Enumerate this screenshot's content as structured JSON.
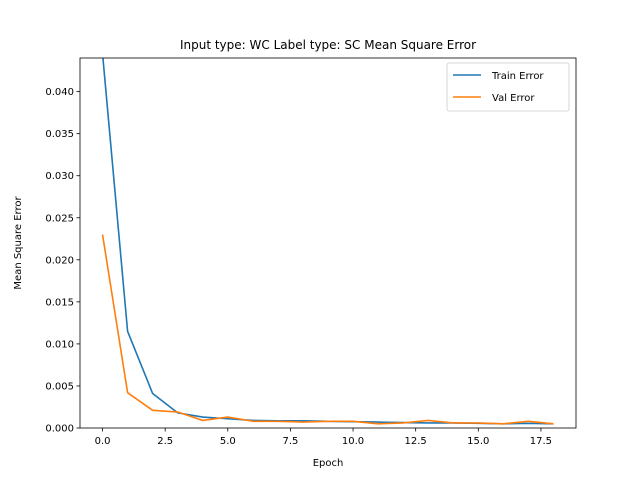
{
  "chart_data": {
    "type": "line",
    "title": "Input type: WC Label type: SC    Mean Square Error",
    "xlabel": "Epoch",
    "ylabel": "Mean Square Error",
    "xlim": [
      -0.9,
      18.9
    ],
    "ylim": [
      0,
      0.044
    ],
    "xticks": [
      0,
      2.5,
      5,
      7.5,
      10,
      12.5,
      15,
      17.5
    ],
    "xtick_labels": [
      "0.0",
      "2.5",
      "5.0",
      "7.5",
      "10.0",
      "12.5",
      "15.0",
      "17.5"
    ],
    "yticks": [
      0,
      0.005,
      0.01,
      0.015,
      0.02,
      0.025,
      0.03,
      0.035,
      0.04
    ],
    "ytick_labels": [
      "0.000",
      "0.005",
      "0.010",
      "0.015",
      "0.020",
      "0.025",
      "0.030",
      "0.035",
      "0.040"
    ],
    "grid": false,
    "legend_position": "top-right",
    "x": [
      0,
      1,
      2,
      3,
      4,
      5,
      6,
      7,
      8,
      9,
      10,
      11,
      12,
      13,
      14,
      15,
      16,
      17,
      18
    ],
    "series": [
      {
        "name": "Train Error",
        "color": "#1f77b4",
        "values": [
          0.0445,
          0.0115,
          0.0041,
          0.0018,
          0.0013,
          0.0011,
          0.0009,
          0.00085,
          0.00085,
          0.0008,
          0.00075,
          0.0007,
          0.00065,
          0.0006,
          0.0006,
          0.00055,
          0.0005,
          0.00055,
          0.0005
        ]
      },
      {
        "name": "Val Error",
        "color": "#ff7f0e",
        "values": [
          0.023,
          0.0042,
          0.0021,
          0.0019,
          0.0009,
          0.0013,
          0.0008,
          0.0008,
          0.0007,
          0.0008,
          0.0008,
          0.0005,
          0.0006,
          0.0009,
          0.0006,
          0.0006,
          0.0005,
          0.0008,
          0.0005
        ]
      }
    ]
  }
}
